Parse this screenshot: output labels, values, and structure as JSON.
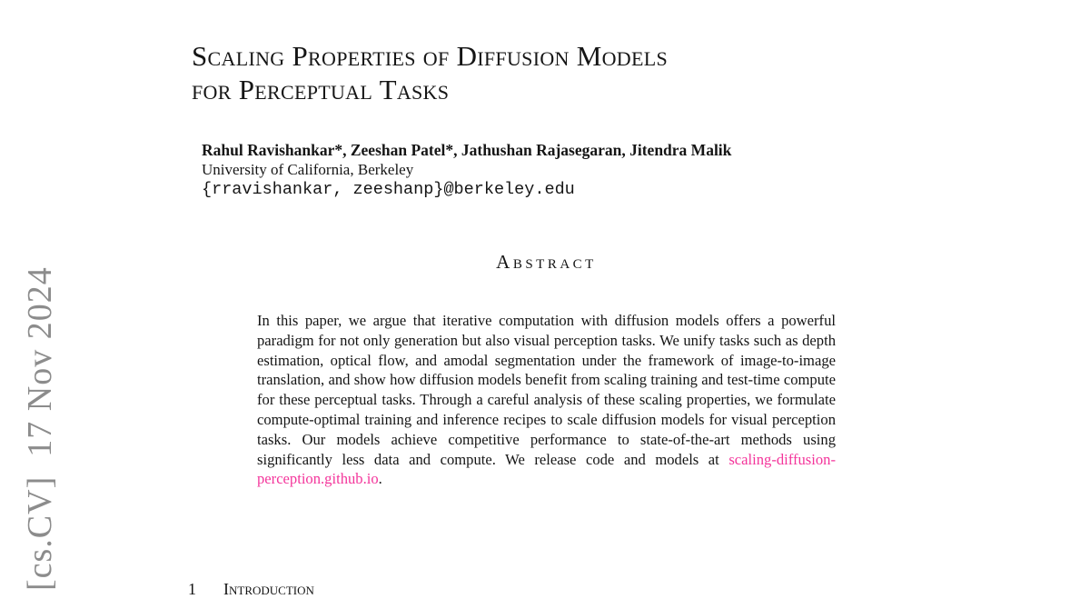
{
  "theme": {
    "background": "#ffffff",
    "text_color": "#151515",
    "link_color": "#f4359b",
    "stamp_color": "#8c8c8c"
  },
  "arxiv_stamp": {
    "text": "[cs.CV]  17 Nov 2024"
  },
  "title": {
    "line1": "Scaling Properties of Diffusion Models",
    "line2": "for Perceptual Tasks"
  },
  "authors": {
    "names": "Rahul Ravishankar*, Zeeshan Patel*, Jathushan Rajasegaran, Jitendra Malik",
    "affiliation": "University of California, Berkeley",
    "email": "{rravishankar, zeeshanp}@berkeley.edu"
  },
  "abstract": {
    "heading": "Abstract",
    "body": "In this paper, we argue that iterative computation with diffusion models offers a powerful paradigm for not only generation but also visual perception tasks. We unify tasks such as depth estimation, optical flow, and amodal segmentation under the framework of image-to-image translation, and show how diffusion models benefit from scaling training and test-time compute for these perceptual tasks. Through a careful analysis of these scaling properties, we formulate compute-optimal training and inference recipes to scale diffusion models for visual perception tasks. Our models achieve competitive performance to state-of-the-art methods using significantly less data and compute. We release code and models at ",
    "link_text": "scaling-diffusion-perception.github.io",
    "after_link": "."
  },
  "intro_section": {
    "number": "1",
    "title": "Introduction"
  }
}
